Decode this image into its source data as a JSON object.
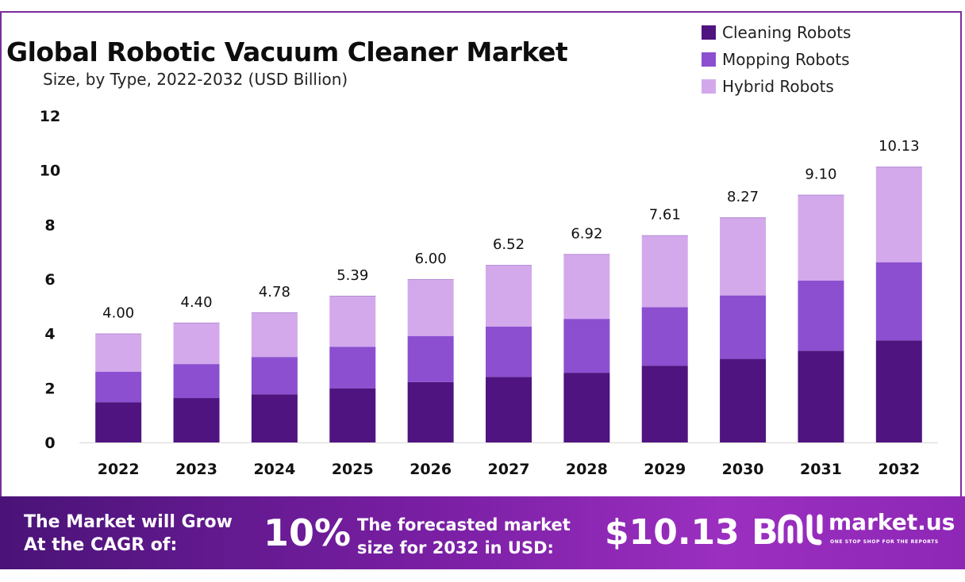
{
  "chart_data": {
    "type": "bar",
    "stacked": true,
    "title": "Global Robotic Vacuum Cleaner Market",
    "subtitle": "Size, by Type, 2022-2032 (USD Billion)",
    "categories": [
      "2022",
      "2023",
      "2024",
      "2025",
      "2026",
      "2027",
      "2028",
      "2029",
      "2030",
      "2031",
      "2032"
    ],
    "series": [
      {
        "name": "Cleaning Robots",
        "color": "#4f1480",
        "values": [
          1.48,
          1.63,
          1.77,
          1.99,
          2.22,
          2.41,
          2.56,
          2.82,
          3.07,
          3.37,
          3.75
        ]
      },
      {
        "name": "Mopping Robots",
        "color": "#8b4fd0",
        "values": [
          1.12,
          1.25,
          1.37,
          1.52,
          1.69,
          1.85,
          1.98,
          2.15,
          2.33,
          2.58,
          2.87
        ]
      },
      {
        "name": "Hybrid Robots",
        "color": "#d3a9eb",
        "values": [
          1.4,
          1.52,
          1.64,
          1.88,
          2.09,
          2.26,
          2.38,
          2.64,
          2.87,
          3.15,
          3.51
        ]
      }
    ],
    "totals": [
      "4.00",
      "4.40",
      "4.78",
      "5.39",
      "6.00",
      "6.52",
      "6.92",
      "7.61",
      "8.27",
      "9.10",
      "10.13"
    ],
    "ylim": [
      0,
      12
    ],
    "yticks": [
      "0",
      "2",
      "4",
      "6",
      "8",
      "10",
      "12"
    ],
    "xlabel": "",
    "ylabel": "",
    "legend": "top-right",
    "grid": false
  },
  "banner": {
    "cagr_label": "The Market will Grow At the CAGR of:",
    "cagr_value": "10%",
    "forecast_label": "The forecasted market size for 2032 in USD:",
    "forecast_value": "$10.13 B",
    "brand_name": "market.us",
    "brand_tagline": "ONE STOP SHOP FOR THE REPORTS",
    "logo_icon": "market-us-logo-icon"
  }
}
